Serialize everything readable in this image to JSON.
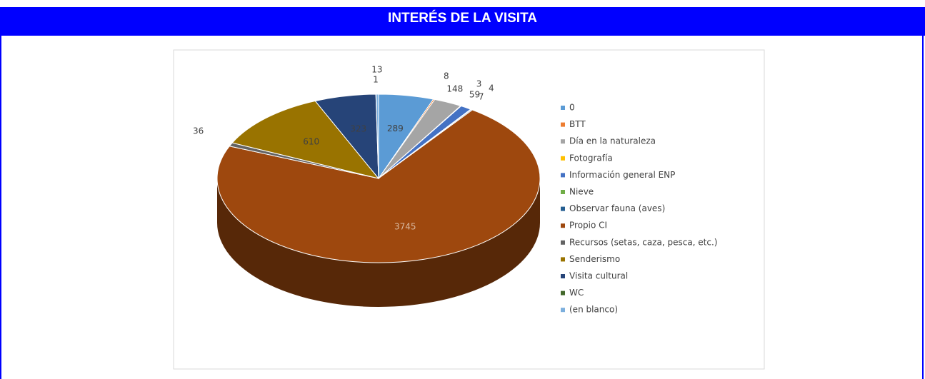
{
  "header": {
    "title": "INTERÉS DE LA VISITA"
  },
  "chart_data": {
    "type": "pie",
    "categories": [
      "0",
      "BTT",
      "Día en la naturaleza",
      "Fotografía",
      "Información general ENP",
      "Nieve",
      "Observar fauna (aves)",
      "Propio CI",
      "Recursos (setas, caza, pesca, etc.)",
      "Senderismo",
      "Visita cultural",
      "WC",
      "(en blanco)"
    ],
    "values": [
      289,
      8,
      148,
      3,
      59,
      4,
      7,
      3745,
      36,
      610,
      323,
      1,
      13
    ],
    "colors": [
      "#5b9bd5",
      "#ed7d31",
      "#a5a5a5",
      "#ffc000",
      "#4472c4",
      "#70ad47",
      "#255e91",
      "#9e480e",
      "#636363",
      "#997300",
      "#264478",
      "#43682b",
      "#7cafdd"
    ],
    "legend": "right"
  }
}
